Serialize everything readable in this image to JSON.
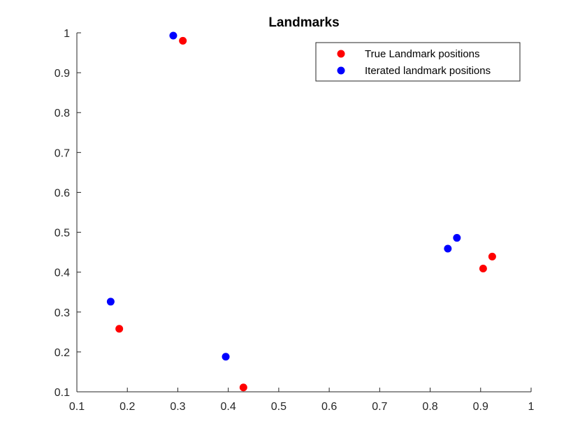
{
  "chart_data": {
    "type": "scatter",
    "title": "Landmarks",
    "xlabel": "",
    "ylabel": "",
    "xlim": [
      0.1,
      1
    ],
    "ylim": [
      0.1,
      1
    ],
    "xticks": [
      "0.1",
      "0.2",
      "0.3",
      "0.4",
      "0.5",
      "0.6",
      "0.7",
      "0.8",
      "0.9",
      "1"
    ],
    "yticks": [
      "0.1",
      "0.2",
      "0.3",
      "0.4",
      "0.5",
      "0.6",
      "0.7",
      "0.8",
      "0.9",
      "1"
    ],
    "grid": false,
    "legend_position": "top-right",
    "series": [
      {
        "name": "True Landmark positions",
        "color": "#ff0000",
        "points": [
          {
            "x": 0.31,
            "y": 0.98
          },
          {
            "x": 0.184,
            "y": 0.258
          },
          {
            "x": 0.43,
            "y": 0.111
          },
          {
            "x": 0.905,
            "y": 0.409
          },
          {
            "x": 0.923,
            "y": 0.439
          }
        ]
      },
      {
        "name": "Iterated landmark positions",
        "color": "#0000ff",
        "points": [
          {
            "x": 0.291,
            "y": 0.993
          },
          {
            "x": 0.167,
            "y": 0.326
          },
          {
            "x": 0.395,
            "y": 0.188
          },
          {
            "x": 0.835,
            "y": 0.459
          },
          {
            "x": 0.853,
            "y": 0.486
          }
        ]
      }
    ]
  }
}
